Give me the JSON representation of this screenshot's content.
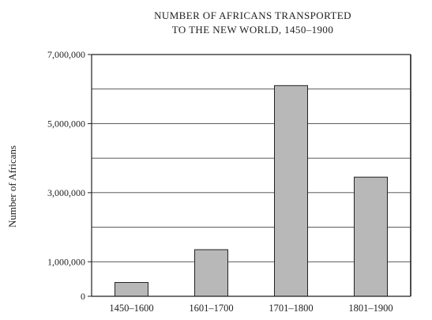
{
  "chart_data": {
    "type": "bar",
    "title_lines": [
      "NUMBER OF AFRICANS TRANSPORTED",
      "TO THE NEW WORLD, 1450–1900"
    ],
    "ylabel": "Number of Africans",
    "xlabel": "",
    "categories": [
      "1450–1600",
      "1601–1700",
      "1701–1800",
      "1801–1900"
    ],
    "values": [
      400000,
      1350000,
      6100000,
      3450000
    ],
    "ylim": [
      0,
      7000000
    ],
    "yticks": [
      0,
      1000000,
      3000000,
      5000000,
      7000000
    ],
    "ytick_labels": [
      "0",
      "1,000,000",
      "3,000,000",
      "5,000,000",
      "7,000,000"
    ],
    "gridlines": [
      1000000,
      2000000,
      3000000,
      4000000,
      5000000,
      6000000
    ],
    "grid": true,
    "bar_color": "#b8b8b8",
    "bar_edge_color": "#222222"
  }
}
